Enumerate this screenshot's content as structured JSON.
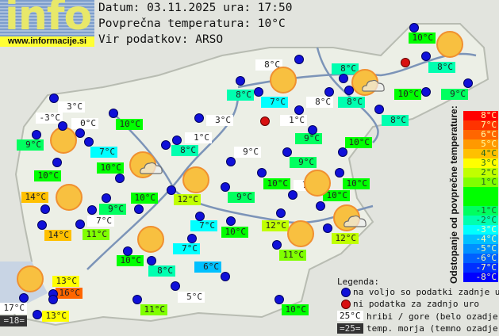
{
  "header": {
    "logo_word": "info",
    "logo_url": "www.informacije.si",
    "date_line": "Datum: 03.11.2025 ura: 17:50",
    "avg_line": "Povprečna temperatura: 10°C",
    "source_line": "Vir podatkov: ARSO"
  },
  "average_temperature": 10,
  "stations": [
    {
      "t": "10°C",
      "v": 10
    },
    {
      "t": "8°C",
      "v": 8,
      "m": true
    },
    {
      "t": "8°C",
      "v": 8
    },
    {
      "t": "8°C",
      "v": 8
    },
    {
      "t": "8°C",
      "v": 8
    },
    {
      "t": "7°C",
      "v": 7
    },
    {
      "t": "8°C",
      "v": 8,
      "m": true
    },
    {
      "t": "8°C",
      "v": 8
    },
    {
      "t": "10°C",
      "v": 10
    },
    {
      "t": "9°C",
      "v": 9
    },
    {
      "t": "3°C",
      "v": 3,
      "m": true
    },
    {
      "t": "-3°C",
      "v": -3,
      "m": true
    },
    {
      "t": "0°C",
      "v": 0,
      "m": true
    },
    {
      "t": "10°C",
      "v": 10
    },
    {
      "t": "3°C",
      "v": 3,
      "m": true
    },
    {
      "t": "1°C",
      "v": 1,
      "m": true
    },
    {
      "t": "8°C",
      "v": 8
    },
    {
      "t": "9°C",
      "v": 9
    },
    {
      "t": "9°C",
      "v": 9
    },
    {
      "t": "1°C",
      "v": 1,
      "m": true
    },
    {
      "t": "7°C",
      "v": 7
    },
    {
      "t": "8°C",
      "v": 8
    },
    {
      "t": "9°C",
      "v": 9,
      "m": true
    },
    {
      "t": "10°C",
      "v": 10
    },
    {
      "t": "9°C",
      "v": 9
    },
    {
      "t": "10°C",
      "v": 10
    },
    {
      "t": "10°C",
      "v": 10
    },
    {
      "t": "10°C",
      "v": 10
    },
    {
      "t": "7°C",
      "v": 7,
      "m": true
    },
    {
      "t": "10°C",
      "v": 10
    },
    {
      "t": "10°C",
      "v": 10
    },
    {
      "t": "14°C",
      "v": 14
    },
    {
      "t": "10°C",
      "v": 10
    },
    {
      "t": "12°C",
      "v": 12
    },
    {
      "t": "9°C",
      "v": 9
    },
    {
      "t": "9°C",
      "v": 9
    },
    {
      "t": "7°C",
      "v": 7,
      "m": true
    },
    {
      "t": "12°C",
      "v": 12
    },
    {
      "t": "7°C",
      "v": 7
    },
    {
      "t": "10°C",
      "v": 10
    },
    {
      "t": "14°C",
      "v": 14
    },
    {
      "t": "11°C",
      "v": 11
    },
    {
      "t": "12°C",
      "v": 12
    },
    {
      "t": "7°C",
      "v": 7
    },
    {
      "t": "11°C",
      "v": 11
    },
    {
      "t": "10°C",
      "v": 10
    },
    {
      "t": "8°C",
      "v": 8
    },
    {
      "t": "6°C",
      "v": 6
    },
    {
      "t": "13°C",
      "v": 13
    },
    {
      "t": "16°C",
      "v": 16
    },
    {
      "t": "5°C",
      "v": 5,
      "m": true
    },
    {
      "t": "17°C",
      "v": 17,
      "m": true
    },
    {
      "t": "=18=",
      "v": 18,
      "sea": true
    },
    {
      "t": "13°C",
      "v": 13
    },
    {
      "t": "11°C",
      "v": 11
    },
    {
      "t": "10°C",
      "v": 10
    }
  ],
  "scale": {
    "title": "Odstopanje od povprečne temperature:",
    "steps": [
      {
        "label": "8°C",
        "color": "#ff0000"
      },
      {
        "label": "7°C",
        "color": "#ff3300"
      },
      {
        "label": "6°C",
        "color": "#ff6600"
      },
      {
        "label": "5°C",
        "color": "#ff9900"
      },
      {
        "label": "4°C",
        "color": "#ffc000"
      },
      {
        "label": "3°C",
        "color": "#ffff00"
      },
      {
        "label": "2°C",
        "color": "#c0ff00"
      },
      {
        "label": "1°C",
        "color": "#80ff00"
      },
      {
        "label": "",
        "color": "#00ff00"
      },
      {
        "label": "",
        "color": "#00ff00"
      },
      {
        "label": "-1°C",
        "color": "#00ff60"
      },
      {
        "label": "-2°C",
        "color": "#00ffb0"
      },
      {
        "label": "-3°C",
        "color": "#00ffff"
      },
      {
        "label": "-4°C",
        "color": "#00c0ff"
      },
      {
        "label": "-5°C",
        "color": "#0090ff"
      },
      {
        "label": "-6°C",
        "color": "#0060ff"
      },
      {
        "label": "-7°C",
        "color": "#0030ff"
      },
      {
        "label": "-8°C",
        "color": "#0000ff"
      }
    ]
  },
  "legend": {
    "title": "Legenda:",
    "blue_dot": "na voljo so podatki zadnje ure",
    "red_dot": "ni podatka za zadnjo uro",
    "mountain_sample": "25°C",
    "mountain_text": "hribi / gore (belo ozadje)",
    "sea_sample": "=25=",
    "sea_text": "temp. morja (temno ozadje)"
  },
  "colors": {
    "blue_dot": "#1010d8",
    "red_dot": "#d81010",
    "mountain_bg": "#ffffff",
    "sea_bg": "#333333"
  }
}
